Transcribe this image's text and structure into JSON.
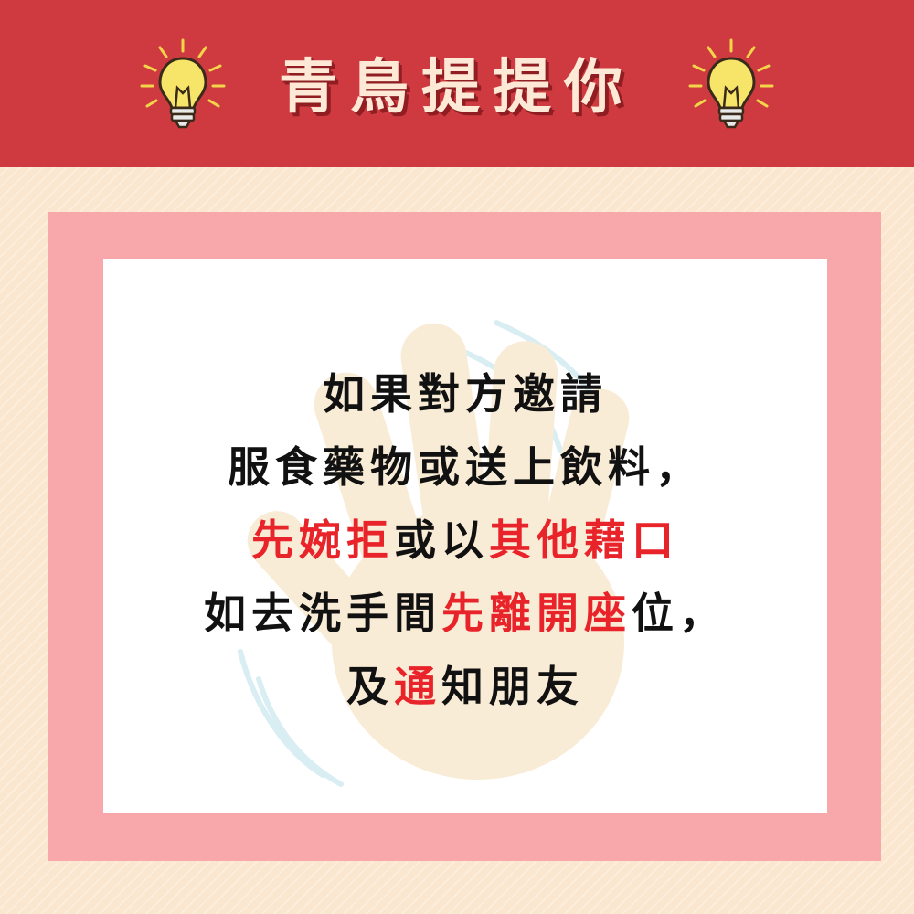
{
  "header": {
    "title": "青鳥提提你",
    "icons": [
      "lightbulb-icon",
      "lightbulb-icon"
    ],
    "background_color": "#cf3a40",
    "title_color": "#fde9d6"
  },
  "colors": {
    "page_background": "#fbe6cf",
    "frame": "#f8a7aa",
    "card": "#ffffff",
    "highlight": "#e8232a",
    "text": "#111111"
  },
  "decoration": {
    "icon": "raised-hand-icon"
  },
  "message": {
    "lines": [
      [
        {
          "text": "如果對方邀請",
          "highlight": false
        }
      ],
      [
        {
          "text": "服食藥物或送上飲料，",
          "highlight": false
        }
      ],
      [
        {
          "text": "先婉拒",
          "highlight": true
        },
        {
          "text": "或以",
          "highlight": false
        },
        {
          "text": "其他藉口",
          "highlight": true
        }
      ],
      [
        {
          "text": "如去洗手間",
          "highlight": false
        },
        {
          "text": "先離開座",
          "highlight": true
        },
        {
          "text": "位，",
          "highlight": false
        }
      ],
      [
        {
          "text": "及",
          "highlight": false
        },
        {
          "text": "通",
          "highlight": true
        },
        {
          "text": "知朋友",
          "highlight": false
        }
      ]
    ]
  }
}
